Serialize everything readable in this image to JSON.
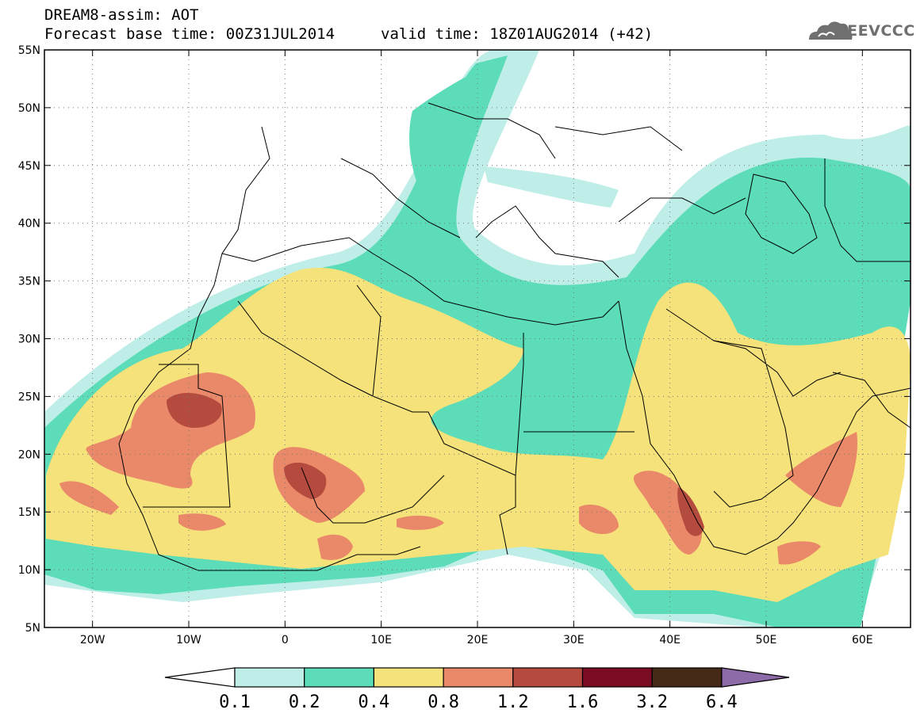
{
  "header": {
    "line1": "DREAM8-assim: AOT",
    "line2": "Forecast base time: 00Z31JUL2014",
    "valid": "valid time: 18Z01AUG2014 (+42)",
    "logo": "SEEVCCC",
    "logo_icon": "cloud-icon"
  },
  "map": {
    "lat_labels": [
      "55N",
      "50N",
      "45N",
      "40N",
      "35N",
      "30N",
      "25N",
      "20N",
      "15N",
      "10N",
      "5N"
    ],
    "lon_labels": [
      "20W",
      "10W",
      "0",
      "10E",
      "20E",
      "30E",
      "40E",
      "50E",
      "60E"
    ],
    "lat_range": [
      5,
      55
    ],
    "lon_range": [
      -25,
      65
    ],
    "grid": "dotted"
  },
  "colorbar": {
    "labels": [
      "0.1",
      "0.2",
      "0.4",
      "0.8",
      "1.2",
      "1.6",
      "3.2",
      "6.4"
    ],
    "colors": [
      "#ffffff",
      "#bfeee8",
      "#5cdcb8",
      "#f5e27a",
      "#e9896a",
      "#b54b3e",
      "#7a0d23",
      "#452a18",
      "#8d6aa8"
    ]
  }
}
